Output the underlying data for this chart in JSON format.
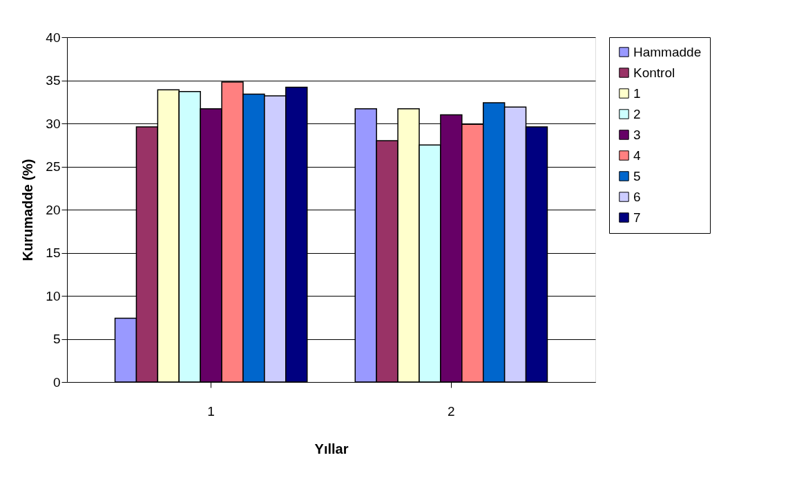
{
  "chart_data": {
    "type": "bar",
    "xlabel": "Yıllar",
    "ylabel": "Kurumadde (%)",
    "categories": [
      "1",
      "2"
    ],
    "series": [
      {
        "name": "Hammadde",
        "color": "#9999ff",
        "values": [
          7.4,
          31.7
        ]
      },
      {
        "name": "Kontrol",
        "color": "#993366",
        "values": [
          29.6,
          28.0
        ]
      },
      {
        "name": "1",
        "color": "#ffffcc",
        "values": [
          33.9,
          31.7
        ]
      },
      {
        "name": "2",
        "color": "#ccffff",
        "values": [
          33.7,
          27.5
        ]
      },
      {
        "name": "3",
        "color": "#660066",
        "values": [
          31.7,
          31.0
        ]
      },
      {
        "name": "4",
        "color": "#ff8080",
        "values": [
          34.8,
          29.9
        ]
      },
      {
        "name": "5",
        "color": "#0066cc",
        "values": [
          33.4,
          32.4
        ]
      },
      {
        "name": "6",
        "color": "#ccccff",
        "values": [
          33.2,
          31.9
        ]
      },
      {
        "name": "7",
        "color": "#000080",
        "values": [
          34.2,
          29.6
        ]
      }
    ],
    "ylim": [
      0,
      40
    ],
    "yticks": [
      0,
      5,
      10,
      15,
      20,
      25,
      30,
      35,
      40
    ],
    "grid": "y",
    "legend": "right"
  }
}
